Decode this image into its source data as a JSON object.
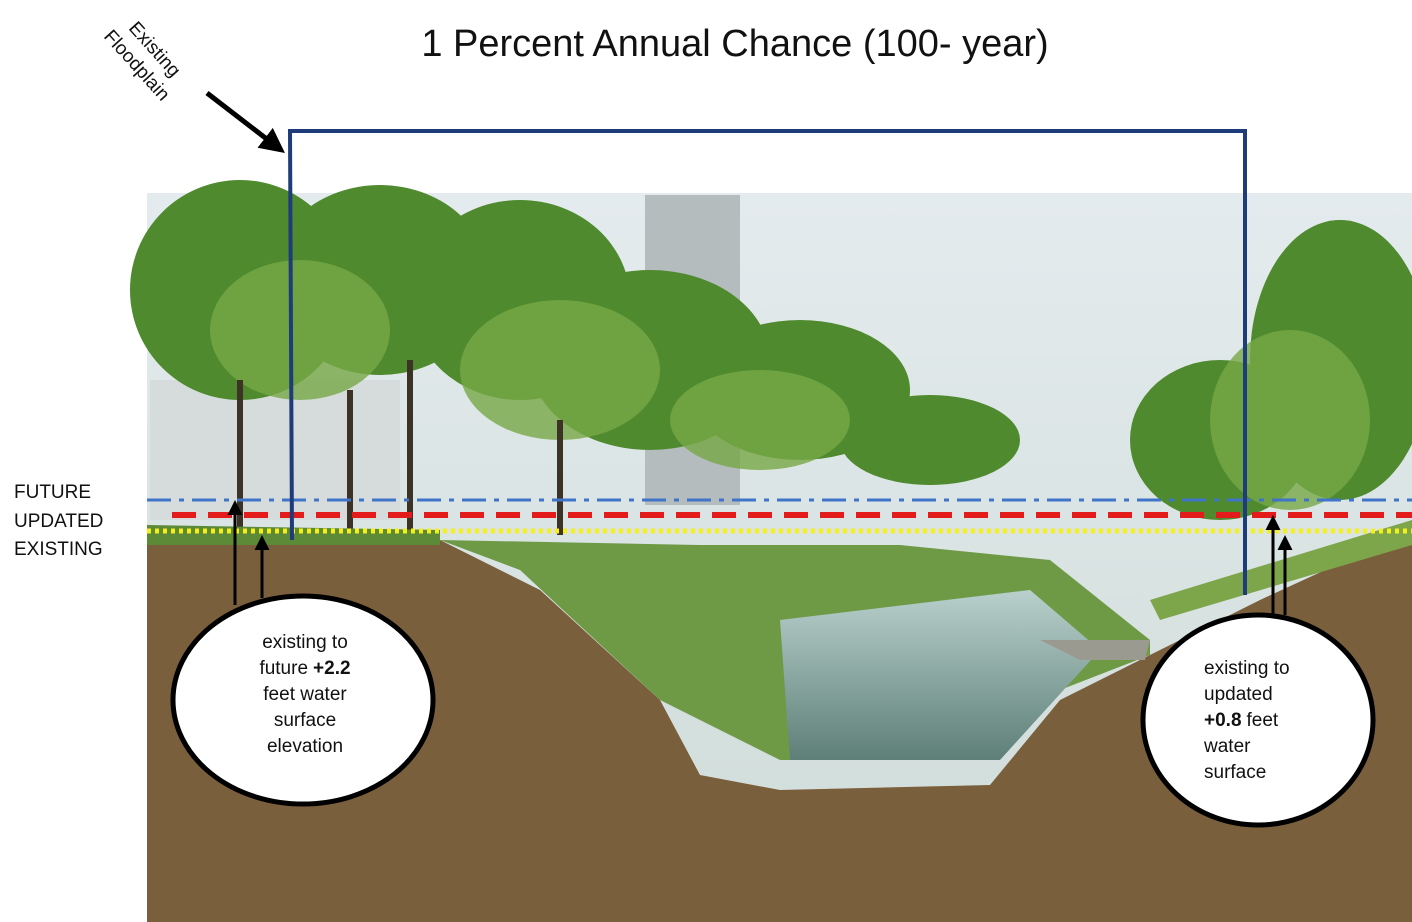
{
  "title": "1 Percent Annual Chance (100- year)",
  "annotation": {
    "lines": [
      "Existing",
      "Floodplain"
    ]
  },
  "levels": [
    "FUTURE",
    "UPDATED",
    "EXISTING"
  ],
  "callouts": [
    {
      "lines": [
        [
          {
            "text": "existing to"
          }
        ],
        [
          {
            "text": "future"
          },
          {
            "text": "+2.2",
            "bold": true
          }
        ],
        [
          {
            "text": "feet water"
          }
        ],
        [
          {
            "text": "surface"
          }
        ],
        [
          {
            "text": "elevation"
          }
        ]
      ]
    },
    {
      "lines": [
        [
          {
            "text": "existing to"
          }
        ],
        [
          {
            "text": "updated"
          }
        ],
        [
          {
            "text": "+0.8",
            "bold": true
          },
          {
            "text": "feet"
          }
        ],
        [
          {
            "text": "water"
          }
        ],
        [
          {
            "text": "surface"
          }
        ]
      ]
    }
  ]
}
